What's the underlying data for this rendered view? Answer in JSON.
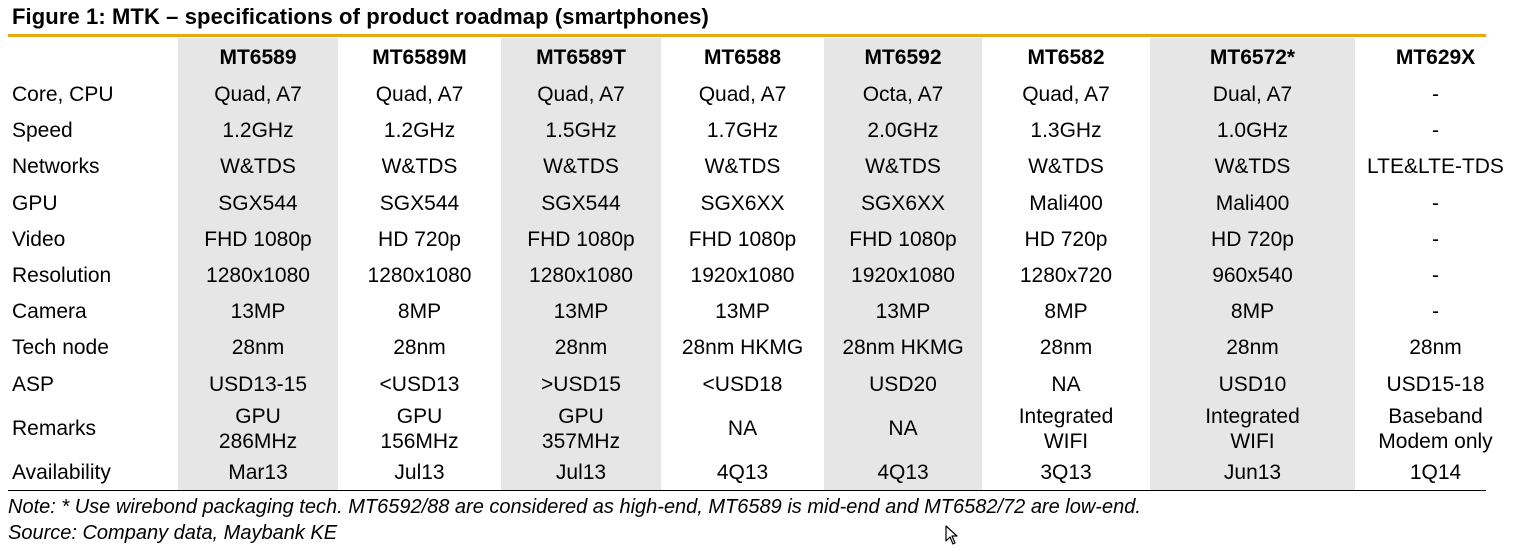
{
  "title": "Figure 1: MTK – specifications of product roadmap (smartphones)",
  "table": {
    "columns": [
      "MT6589",
      "MT6589M",
      "MT6589T",
      "MT6588",
      "MT6592",
      "MT6582",
      "MT6572*",
      "MT629X"
    ],
    "rows": [
      {
        "label": "Core, CPU",
        "cells": [
          "Quad, A7",
          "Quad, A7",
          "Quad, A7",
          "Quad, A7",
          "Octa, A7",
          "Quad, A7",
          "Dual, A7",
          "-"
        ]
      },
      {
        "label": "Speed",
        "cells": [
          "1.2GHz",
          "1.2GHz",
          "1.5GHz",
          "1.7GHz",
          "2.0GHz",
          "1.3GHz",
          "1.0GHz",
          "-"
        ]
      },
      {
        "label": "Networks",
        "cells": [
          "W&TDS",
          "W&TDS",
          "W&TDS",
          "W&TDS",
          "W&TDS",
          "W&TDS",
          "W&TDS",
          "LTE&LTE-TDS"
        ]
      },
      {
        "label": "GPU",
        "cells": [
          "SGX544",
          "SGX544",
          "SGX544",
          "SGX6XX",
          "SGX6XX",
          "Mali400",
          "Mali400",
          "-"
        ]
      },
      {
        "label": "Video",
        "cells": [
          "FHD 1080p",
          "HD 720p",
          "FHD 1080p",
          "FHD 1080p",
          "FHD 1080p",
          "HD 720p",
          "HD 720p",
          "-"
        ]
      },
      {
        "label": "Resolution",
        "cells": [
          "1280x1080",
          "1280x1080",
          "1280x1080",
          "1920x1080",
          "1920x1080",
          "1280x720",
          "960x540",
          "-"
        ]
      },
      {
        "label": "Camera",
        "cells": [
          "13MP",
          "8MP",
          "13MP",
          "13MP",
          "13MP",
          "8MP",
          "8MP",
          "-"
        ]
      },
      {
        "label": "Tech node",
        "cells": [
          "28nm",
          "28nm",
          "28nm",
          "28nm HKMG",
          "28nm HKMG",
          "28nm",
          "28nm",
          "28nm"
        ]
      },
      {
        "label": "ASP",
        "cells": [
          "USD13-15",
          "<USD13",
          ">USD15",
          "<USD18",
          "USD20",
          "NA",
          "USD10",
          "USD15-18"
        ]
      },
      {
        "label": "Remarks",
        "cells": [
          "GPU\n286MHz",
          "GPU\n156MHz",
          "GPU\n357MHz",
          "NA",
          "NA",
          "Integrated\nWIFI",
          "Integrated\nWIFI",
          "Baseband\nModem only"
        ]
      },
      {
        "label": "Availability",
        "cells": [
          "Mar13",
          "Jul13",
          "Jul13",
          "4Q13",
          "4Q13",
          "3Q13",
          "Jun13",
          "1Q14"
        ]
      }
    ]
  },
  "note": "Note: * Use wirebond packaging tech. MT6592/88 are considered as high-end, MT6589 is mid-end and MT6582/72 are low-end.",
  "source": "Source: Company data, Maybank KE",
  "colors": {
    "accent_rule": "#e8a90c",
    "shade": "#e6e6e6"
  },
  "icons": {
    "cursor": "mouse-pointer-icon"
  }
}
